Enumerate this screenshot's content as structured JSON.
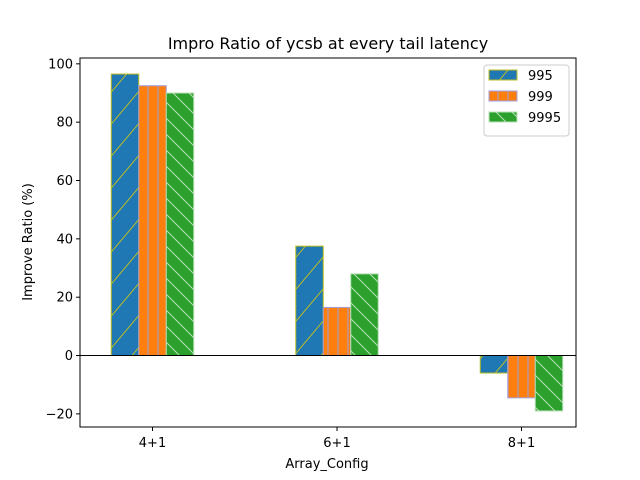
{
  "chart_data": {
    "type": "bar",
    "title": "Impro Ratio of ycsb at every tail latency",
    "xlabel": "Array_Config",
    "ylabel": "Improve Ratio (%)",
    "categories": [
      "4+1",
      "6+1",
      "8+1"
    ],
    "ylim": [
      -24.5,
      102
    ],
    "yticks": [
      -20,
      0,
      20,
      40,
      60,
      80,
      100
    ],
    "grid": false,
    "legend_position": "top-right",
    "series": [
      {
        "name": "995",
        "values": [
          96.5,
          37.5,
          -6.0
        ],
        "color": "#1f77b4",
        "edge_color": "#bcbd22",
        "hatch": "/"
      },
      {
        "name": "999",
        "values": [
          92.5,
          16.5,
          -14.5
        ],
        "color": "#ff7f0e",
        "edge_color": "#9f9fdf",
        "hatch": "|"
      },
      {
        "name": "9995",
        "values": [
          90.0,
          28.0,
          -19.0
        ],
        "color": "#2ca02c",
        "edge_color": "#b8e0b8",
        "hatch": "\\"
      }
    ]
  }
}
